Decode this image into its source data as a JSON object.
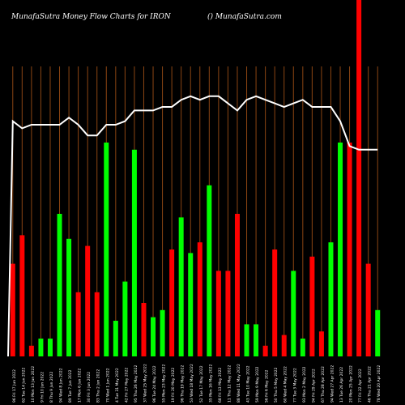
{
  "header": {
    "left": "MunafaSutra  Money Flow  Charts for IRON",
    "right": "() MunafaSutra.com"
  },
  "colors": {
    "background": "#000000",
    "up": "#00ff00",
    "down": "#ff0000",
    "grid": "#8B4513",
    "line": "#ffffff"
  },
  "chart_data": {
    "type": "bar",
    "title": "",
    "ylim": [
      0,
      100
    ],
    "bar_direction": [
      "down",
      "down",
      "down",
      "up",
      "up",
      "up",
      "up",
      "down",
      "down",
      "down",
      "up",
      "up",
      "up",
      "up",
      "down",
      "up",
      "up",
      "down",
      "up",
      "up",
      "down",
      "up",
      "down",
      "down",
      "down",
      "up",
      "up",
      "down",
      "down",
      "down",
      "up",
      "up",
      "down",
      "down",
      "up",
      "up",
      "down",
      "down",
      "down",
      "up"
    ],
    "bar_values": [
      26,
      34,
      3,
      5,
      5,
      40,
      33,
      18,
      31,
      18,
      60,
      10,
      21,
      58,
      15,
      11,
      13,
      30,
      39,
      29,
      32,
      48,
      24,
      24,
      40,
      9,
      9,
      3,
      30,
      6,
      24,
      5,
      28,
      7,
      32,
      60,
      60,
      100,
      26,
      13
    ],
    "price_line": [
      66,
      64,
      65,
      65,
      65,
      65,
      67,
      65,
      62,
      62,
      65,
      65,
      66,
      69,
      69,
      69,
      70,
      70,
      72,
      73,
      72,
      73,
      73,
      71,
      69,
      72,
      73,
      72,
      71,
      70,
      71,
      72,
      70,
      70,
      70,
      66,
      59,
      58,
      58,
      58
    ],
    "x_labels": [
      "96 Fri 17 Jun 2022",
      "62 Tue 14 Jun 2022",
      "10 Mon 13 Jun 2022",
      "9 Fri 10 Jun 2022",
      "8 Thu 9 Jun 2022",
      "94 Wed 8 Jun 2022",
      "89 Tue 7 Jun 2022",
      "17 Mon 6 Jun 2022",
      "30 Fri 3 Jun 2022",
      "83 Thu 2 Jun 2022",
      "70 Wed 1 Jun 2022",
      "4 Tue 31 May 2022",
      "42 Fri 27 May 2022",
      "95 Thu 26 May 2022",
      "37 Wed 25 May 2022",
      "96 Tue 24 May 2022",
      "55 Mon 23 May 2022",
      "19 Fri 20 May 2022",
      "96 Thu 19 May 2022",
      "53 Wed 18 May 2022",
      "52 Tue 17 May 2022",
      "35 Mon 16 May 2022",
      "68 Fri 13 May 2022",
      "11 Thu 12 May 2022",
      "88 Wed 11 May 2022",
      "43 Tue 10 May 2022",
      "59 Mon 9 May 2022",
      "56 Fri 6 May 2022",
      "50 Thu 5 May 2022",
      "60 Wed 4 May 2022",
      "77 Tue 3 May 2022",
      "93 Mon 2 May 2022",
      "94 Fri 29 Apr 2022",
      "67 Thu 28 Apr 2022",
      "94 Wed 27 Apr 2022",
      "13 Tue 26 Apr 2022",
      "20 Mon 25 Apr 2022",
      "77 Fri 22 Apr 2022",
      "46 Thu 21 Apr 2022",
      "78 Wed 20 Apr 2022"
    ]
  }
}
